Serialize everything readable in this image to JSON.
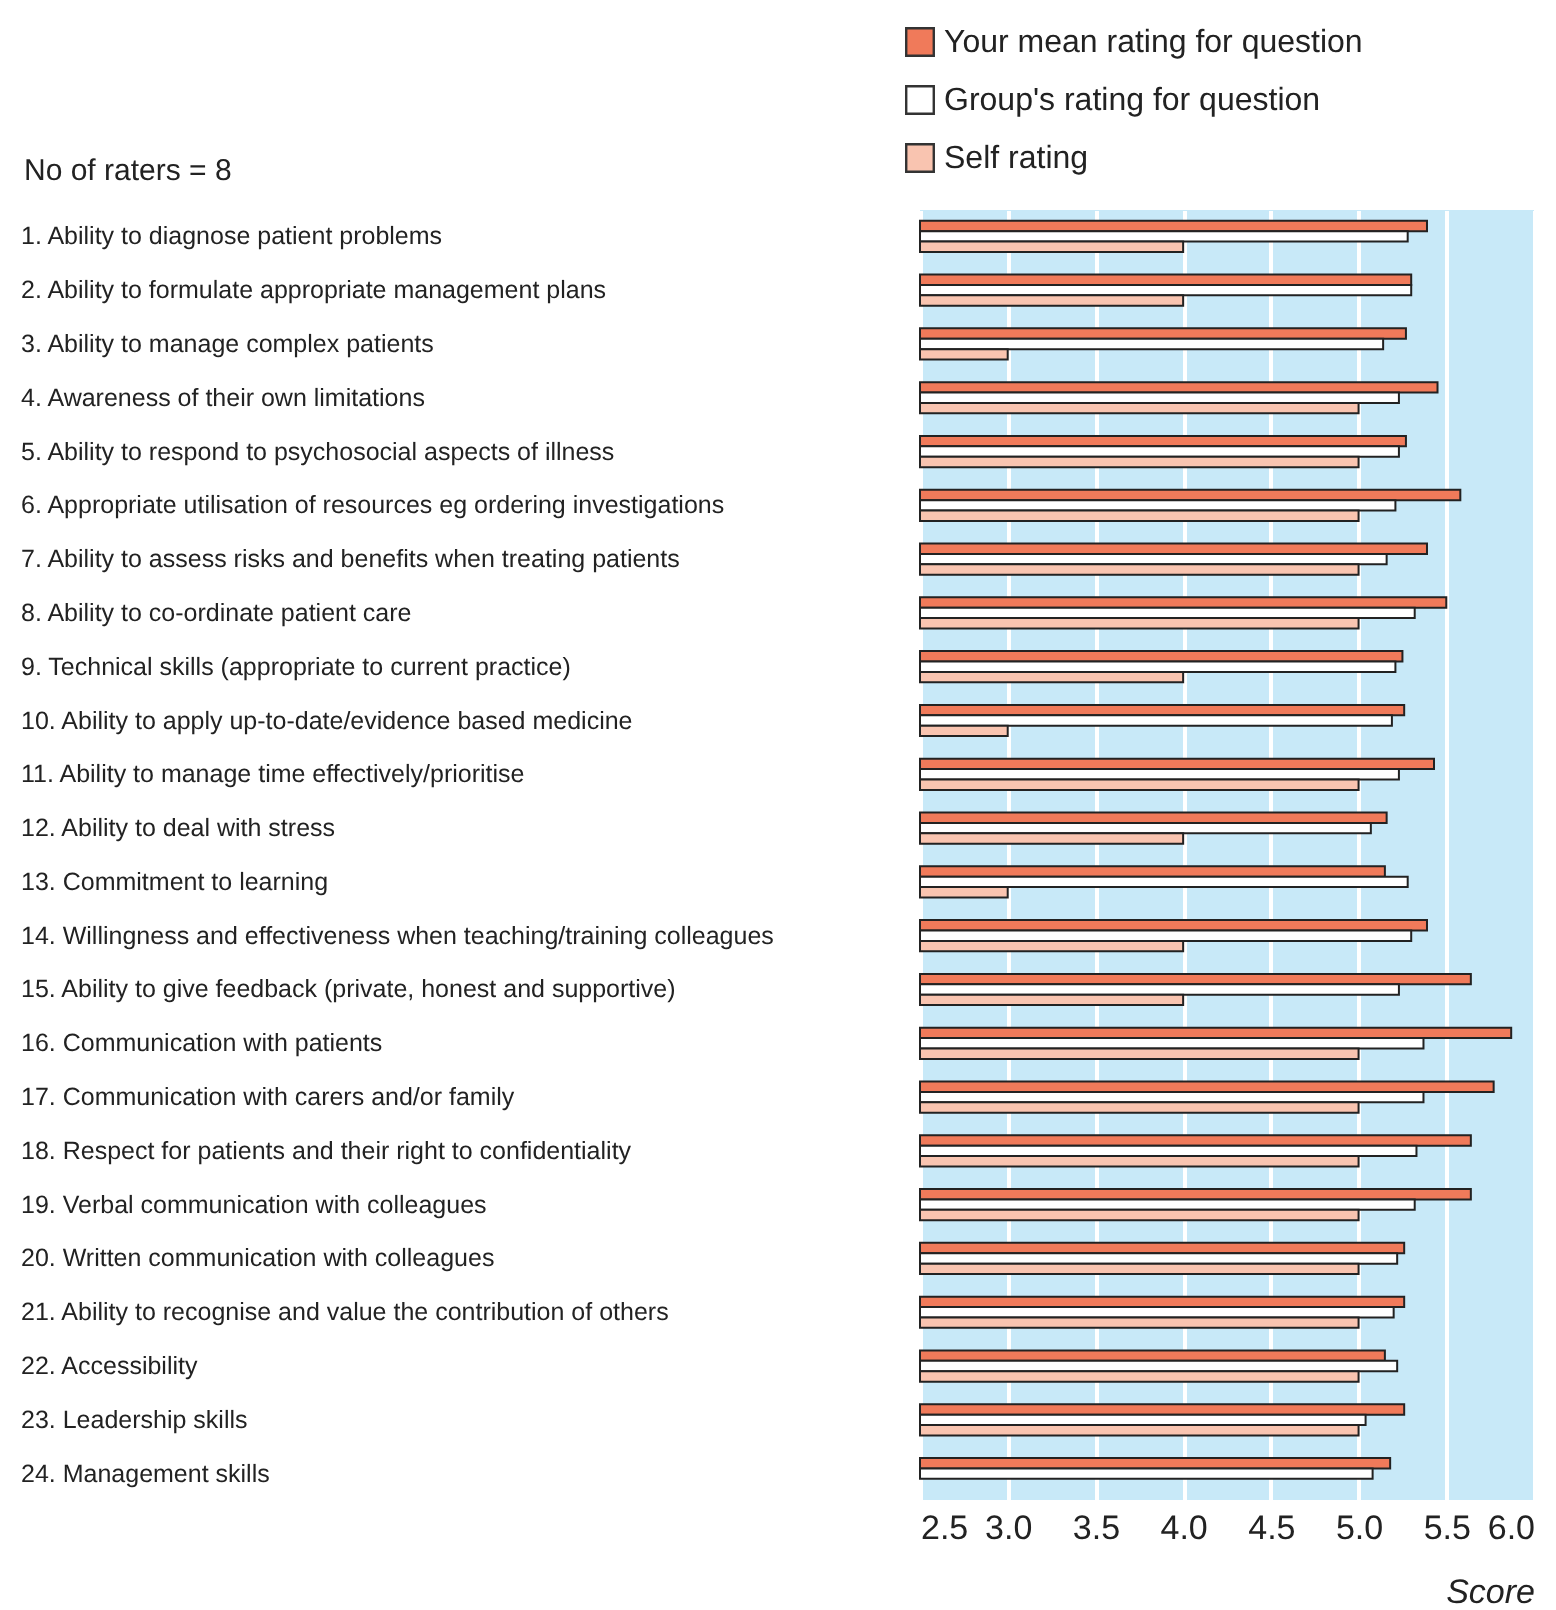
{
  "chart_data": {
    "type": "bar",
    "orientation": "horizontal",
    "xlabel": "Score",
    "annotations": [
      "No of raters = 8"
    ],
    "categories": [
      "1. Ability to diagnose patient problems",
      "2. Ability to formulate appropriate management plans",
      "3. Ability to manage complex patients",
      "4. Awareness of their own limitations",
      "5. Ability to respond to psychosocial aspects of illness",
      "6. Appropriate utilisation of resources eg ordering investigations",
      "7. Ability to assess risks and benefits when treating patients",
      "8. Ability to co-ordinate patient care",
      "9. Technical skills (appropriate to current practice)",
      "10. Ability to apply up-to-date/evidence based medicine",
      "11. Ability to manage time effectively/prioritise",
      "12. Ability to deal with stress",
      "13. Commitment to learning",
      "14. Willingness and effectiveness when teaching/training colleagues",
      "15. Ability to give feedback (private, honest and supportive)",
      "16. Communication with patients",
      "17. Communication with carers and/or family",
      "18. Respect for patients and their right to confidentiality",
      "19. Verbal communication with colleagues",
      "20. Written communication with colleagues",
      "21. Ability to recognise and value the contribution of others",
      "22. Accessibility",
      "23. Leadership skills",
      "24. Management skills"
    ],
    "series": [
      {
        "name": "Your mean rating for question",
        "color": "#f07a5a",
        "values": [
          5.39,
          5.3,
          5.27,
          5.45,
          5.27,
          5.58,
          5.39,
          5.5,
          5.25,
          5.26,
          5.43,
          5.16,
          5.15,
          5.39,
          5.64,
          5.87,
          5.77,
          5.64,
          5.64,
          5.26,
          5.26,
          5.15,
          5.26,
          5.18
        ]
      },
      {
        "name": "Group's rating for question",
        "color": "#ffffff",
        "values": [
          5.28,
          5.3,
          5.14,
          5.23,
          5.23,
          5.21,
          5.16,
          5.32,
          5.21,
          5.19,
          5.23,
          5.07,
          5.28,
          5.3,
          5.23,
          5.37,
          5.37,
          5.33,
          5.32,
          5.22,
          5.2,
          5.22,
          5.04,
          5.08
        ]
      },
      {
        "name": "Self rating",
        "color": "#f9c4b0",
        "values": [
          4.0,
          4.0,
          3.0,
          5.0,
          5.0,
          5.0,
          5.0,
          5.0,
          4.0,
          3.0,
          5.0,
          4.0,
          3.0,
          4.0,
          4.0,
          5.0,
          5.0,
          5.0,
          5.0,
          5.0,
          5.0,
          5.0,
          5.0,
          null
        ]
      }
    ],
    "xlim": [
      2.5,
      6.0
    ],
    "xticks": [
      {
        "value": 2.5,
        "label": "2.5"
      },
      {
        "value": 3,
        "label": "3.0"
      },
      {
        "value": 3.5,
        "label": "3.5"
      },
      {
        "value": 4,
        "label": "4.0"
      },
      {
        "value": 4.5,
        "label": "4.5"
      },
      {
        "value": 5,
        "label": "5.0"
      },
      {
        "value": 5.5,
        "label": "5.5"
      },
      {
        "value": 6,
        "label": "6.0"
      }
    ],
    "grid": "x",
    "legend": "top"
  }
}
